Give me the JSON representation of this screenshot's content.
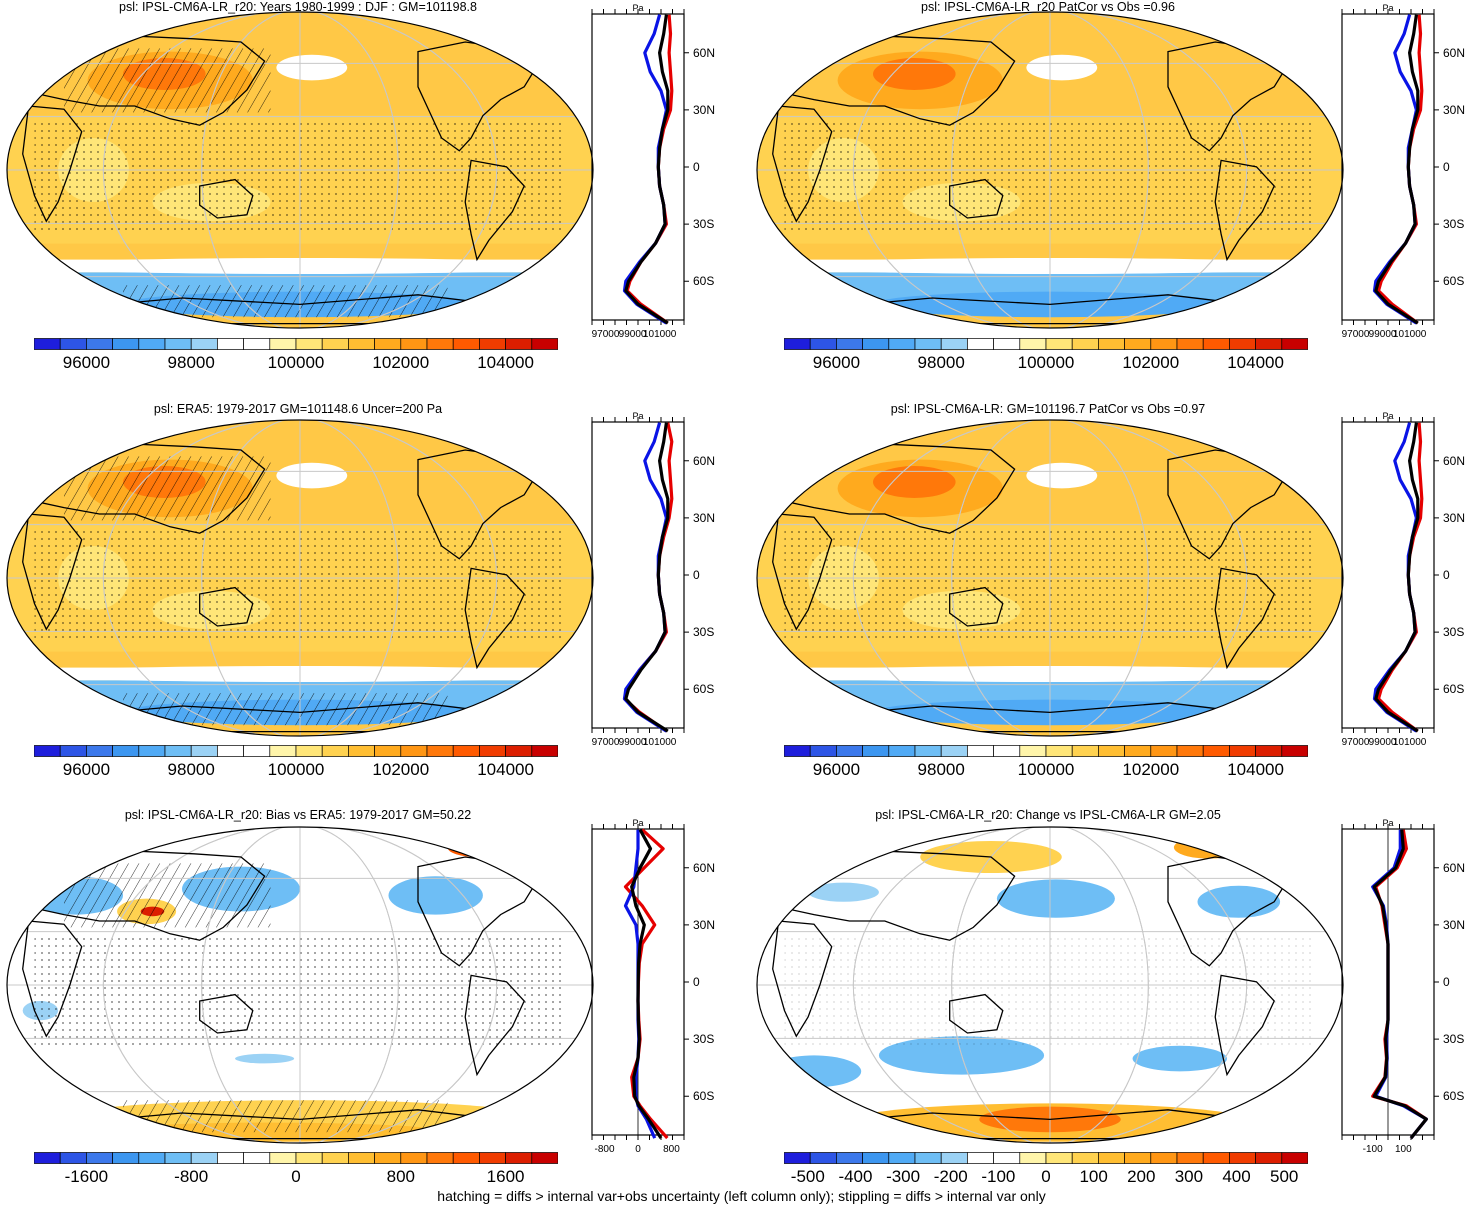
{
  "footer": "hatching = diffs > internal var+obs uncertainty (left column only); stippling = diffs > internal var only",
  "colors": {
    "full_field_palette": [
      "#1e1edc",
      "#2d55e6",
      "#3c78eb",
      "#3c96f0",
      "#50aaf5",
      "#6ebef5",
      "#9bd2f5",
      "#ffffff",
      "#ffffff",
      "#fff5aa",
      "#ffe678",
      "#ffd250",
      "#ffbe32",
      "#ffaa1e",
      "#ff9614",
      "#ff780a",
      "#ff5a00",
      "#f03c00",
      "#dc1e00",
      "#c80000"
    ],
    "diff_palette": [
      "#1e1edc",
      "#2d55e6",
      "#3c78eb",
      "#3c96f0",
      "#50aaf5",
      "#6ebef5",
      "#9bd2f5",
      "#ffffff",
      "#ffffff",
      "#fff5aa",
      "#ffe678",
      "#ffd250",
      "#ffbe32",
      "#ffaa1e",
      "#ff9614",
      "#ff780a",
      "#ff5a00",
      "#f03c00",
      "#dc1e00",
      "#c80000"
    ],
    "model_line": "#e60000",
    "obs_line": "#0a14e6",
    "mean_line": "#000000",
    "map_base_full": "#ffc846",
    "map_base_diff": "#ffffff"
  },
  "panels": [
    {
      "title": "psl: IPSL-CM6A-LR_r20: Years 1980-1999 : DJF : GM=101198.8",
      "colorbar_labels": [
        "96000",
        "98000",
        "100000",
        "102000",
        "104000"
      ],
      "zonal_axis": {
        "unit": "Pa",
        "xticks": [
          "97000",
          "99000",
          "101000"
        ],
        "yticks": [
          "60N",
          "30N",
          "0",
          "30S",
          "60S"
        ]
      }
    },
    {
      "title": "psl: IPSL-CM6A-LR_r20 PatCor vs Obs =0.96",
      "colorbar_labels": [
        "96000",
        "98000",
        "100000",
        "102000",
        "104000"
      ],
      "zonal_axis": {
        "unit": "Pa",
        "xticks": [
          "97000",
          "99000",
          "101000"
        ],
        "yticks": [
          "60N",
          "30N",
          "0",
          "30S",
          "60S"
        ]
      }
    },
    {
      "title": "psl: ERA5: 1979-2017 GM=101148.6 Uncer=200 Pa",
      "colorbar_labels": [
        "96000",
        "98000",
        "100000",
        "102000",
        "104000"
      ],
      "zonal_axis": {
        "unit": "Pa",
        "xticks": [
          "97000",
          "99000",
          "101000"
        ],
        "yticks": [
          "60N",
          "30N",
          "0",
          "30S",
          "60S"
        ]
      }
    },
    {
      "title": "psl: IPSL-CM6A-LR: GM=101196.7 PatCor vs Obs =0.97",
      "colorbar_labels": [
        "96000",
        "98000",
        "100000",
        "102000",
        "104000"
      ],
      "zonal_axis": {
        "unit": "Pa",
        "xticks": [
          "97000",
          "99000",
          "101000"
        ],
        "yticks": [
          "60N",
          "30N",
          "0",
          "30S",
          "60S"
        ]
      }
    },
    {
      "title": "psl: IPSL-CM6A-LR_r20: Bias vs ERA5: 1979-2017 GM=50.22",
      "colorbar_labels": [
        "-1600",
        "-800",
        "0",
        "800",
        "1600"
      ],
      "zonal_axis": {
        "unit": "Pa",
        "xticks": [
          "-800",
          "0",
          "800"
        ],
        "yticks": [
          "60N",
          "30N",
          "0",
          "30S",
          "60S"
        ]
      }
    },
    {
      "title": "psl: IPSL-CM6A-LR_r20: Change vs IPSL-CM6A-LR GM=2.05",
      "colorbar_labels": [
        "-500",
        "-400",
        "-300",
        "-200",
        "-100",
        "0",
        "100",
        "200",
        "300",
        "400",
        "500"
      ],
      "zonal_axis": {
        "unit": "Pa",
        "xticks": [
          "-100",
          "100"
        ],
        "yticks": [
          "60N",
          "30N",
          "0",
          "30S",
          "60S"
        ]
      }
    }
  ],
  "chart_data": [
    {
      "type": "heatmap",
      "title": "psl: IPSL-CM6A-LR_r20: Years 1980-1999 : DJF : GM=101198.8",
      "colorbar": {
        "min": 95000,
        "max": 105000,
        "ticks": [
          96000,
          98000,
          100000,
          102000,
          104000
        ]
      },
      "zonal_profile": {
        "type": "line",
        "xlim": [
          96000,
          102800
        ],
        "lat": [
          -82,
          -72,
          -65,
          -60,
          -50,
          -40,
          -30,
          -20,
          -10,
          0,
          10,
          20,
          30,
          40,
          50,
          60,
          70,
          80
        ],
        "series": [
          {
            "values": [
              101600,
              99600,
              98600,
              98800,
              99600,
              100700,
              101500,
              101300,
              101000,
              100900,
              101000,
              101300,
              101800,
              101900,
              101800,
              101700,
              101800,
              101700
            ]
          },
          {
            "values": [
              101500,
              99300,
              98400,
              98500,
              99500,
              100700,
              101400,
              101300,
              101000,
              100900,
              100900,
              101200,
              101500,
              101100,
              100300,
              99900,
              100600,
              101000
            ]
          },
          {
            "values": [
              101600,
              99400,
              98500,
              98700,
              99600,
              100700,
              101400,
              101300,
              101000,
              100900,
              101000,
              101200,
              101600,
              101600,
              101200,
              101000,
              101300,
              101500
            ]
          }
        ]
      }
    },
    {
      "type": "heatmap",
      "title": "psl: IPSL-CM6A-LR_r20 PatCor vs Obs =0.96",
      "colorbar": {
        "min": 95000,
        "max": 105000,
        "ticks": [
          96000,
          98000,
          100000,
          102000,
          104000
        ]
      },
      "zonal_profile": {
        "type": "line",
        "xlim": [
          96000,
          102800
        ],
        "lat": [
          -82,
          -72,
          -65,
          -60,
          -50,
          -40,
          -30,
          -20,
          -10,
          0,
          10,
          20,
          30,
          40,
          50,
          60,
          70,
          80
        ],
        "series": [
          {
            "values": [
              101600,
              99700,
              98700,
              98900,
              99700,
              100700,
              101500,
              101300,
              101000,
              100900,
              101000,
              101300,
              101800,
              101900,
              101800,
              101700,
              101800,
              101700
            ]
          },
          {
            "values": [
              101500,
              99300,
              98400,
              98500,
              99500,
              100700,
              101400,
              101300,
              101000,
              100900,
              100900,
              101200,
              101500,
              101100,
              100300,
              99900,
              100600,
              101000
            ]
          },
          {
            "values": [
              101600,
              99400,
              98500,
              98700,
              99600,
              100700,
              101400,
              101300,
              101000,
              100900,
              101000,
              101200,
              101600,
              101600,
              101200,
              101000,
              101300,
              101500
            ]
          }
        ]
      }
    },
    {
      "type": "heatmap",
      "title": "psl: ERA5: 1979-2017 GM=101148.6 Uncer=200 Pa",
      "colorbar": {
        "min": 95000,
        "max": 105000,
        "ticks": [
          96000,
          98000,
          100000,
          102000,
          104000
        ]
      },
      "zonal_profile": {
        "type": "line",
        "xlim": [
          96000,
          102800
        ],
        "lat": [
          -82,
          -72,
          -65,
          -60,
          -50,
          -40,
          -30,
          -20,
          -10,
          0,
          10,
          20,
          30,
          40,
          50,
          60,
          70,
          80
        ],
        "series": [
          {
            "values": [
              101500,
              99500,
              98400,
              98600,
              99500,
              100700,
              101500,
              101300,
              101000,
              100900,
              101000,
              101300,
              101700,
              101900,
              101800,
              101700,
              101900,
              101600
            ]
          },
          {
            "values": [
              101500,
              99300,
              98400,
              98500,
              99500,
              100700,
              101400,
              101300,
              101000,
              100900,
              100900,
              101200,
              101500,
              101100,
              100300,
              99900,
              100600,
              101000
            ]
          },
          {
            "values": [
              101600,
              99400,
              98500,
              98700,
              99600,
              100700,
              101400,
              101300,
              101000,
              100900,
              101000,
              101200,
              101600,
              101600,
              101200,
              101000,
              101300,
              101500
            ]
          }
        ]
      }
    },
    {
      "type": "heatmap",
      "title": "psl: IPSL-CM6A-LR: GM=101196.7 PatCor vs Obs =0.97",
      "colorbar": {
        "min": 95000,
        "max": 105000,
        "ticks": [
          96000,
          98000,
          100000,
          102000,
          104000
        ]
      },
      "zonal_profile": {
        "type": "line",
        "xlim": [
          96000,
          102800
        ],
        "lat": [
          -82,
          -72,
          -65,
          -60,
          -50,
          -40,
          -30,
          -20,
          -10,
          0,
          10,
          20,
          30,
          40,
          50,
          60,
          70,
          80
        ],
        "series": [
          {
            "values": [
              101600,
              99700,
              98700,
              98900,
              99700,
              100700,
              101500,
              101300,
              101000,
              100900,
              101000,
              101300,
              101800,
              101900,
              101800,
              101700,
              101800,
              101700
            ]
          },
          {
            "values": [
              101500,
              99300,
              98400,
              98500,
              99500,
              100700,
              101400,
              101300,
              101000,
              100900,
              100900,
              101200,
              101500,
              101100,
              100300,
              99900,
              100600,
              101000
            ]
          },
          {
            "values": [
              101600,
              99400,
              98500,
              98700,
              99600,
              100700,
              101400,
              101300,
              101000,
              100900,
              101000,
              101200,
              101600,
              101600,
              101200,
              101000,
              101300,
              101500
            ]
          }
        ]
      }
    },
    {
      "type": "heatmap",
      "title": "psl: IPSL-CM6A-LR_r20: Bias vs ERA5: 1979-2017 GM=50.22",
      "colorbar": {
        "min": -2000,
        "max": 2000,
        "ticks": [
          -1600,
          -800,
          0,
          800,
          1600
        ]
      },
      "zonal_profile": {
        "type": "line",
        "xlim": [
          -1100,
          1100
        ],
        "lat": [
          -82,
          -72,
          -65,
          -60,
          -50,
          -40,
          -30,
          -20,
          -10,
          0,
          10,
          20,
          30,
          40,
          50,
          60,
          70,
          80
        ],
        "series": [
          {
            "values": [
              700,
              300,
              50,
              -100,
              -150,
              0,
              50,
              20,
              0,
              10,
              30,
              100,
              400,
              100,
              -300,
              150,
              600,
              100
            ]
          },
          {
            "values": [
              400,
              200,
              0,
              -50,
              -50,
              0,
              20,
              0,
              0,
              0,
              0,
              0,
              -50,
              -300,
              -100,
              -50,
              0,
              0
            ]
          },
          {
            "values": [
              550,
              250,
              20,
              -80,
              -100,
              0,
              30,
              10,
              0,
              5,
              15,
              50,
              150,
              -50,
              -150,
              50,
              300,
              50
            ]
          }
        ]
      }
    },
    {
      "type": "heatmap",
      "title": "psl: IPSL-CM6A-LR_r20: Change vs IPSL-CM6A-LR GM=2.05",
      "colorbar": {
        "min": -550,
        "max": 550,
        "ticks": [
          -500,
          -400,
          -300,
          -200,
          -100,
          0,
          100,
          200,
          300,
          400,
          500
        ]
      },
      "zonal_profile": {
        "type": "line",
        "xlim": [
          -300,
          300
        ],
        "lat": [
          -82,
          -72,
          -65,
          -60,
          -50,
          -40,
          -30,
          -20,
          -10,
          0,
          10,
          20,
          30,
          40,
          50,
          60,
          70,
          80
        ],
        "series": [
          {
            "values": [
              150,
              250,
              120,
              -100,
              -20,
              -10,
              -20,
              0,
              0,
              0,
              0,
              0,
              -20,
              -40,
              -80,
              60,
              120,
              100
            ]
          },
          {
            "values": [
              150,
              250,
              100,
              -80,
              -15,
              -5,
              -10,
              0,
              0,
              0,
              0,
              0,
              -10,
              -30,
              -100,
              40,
              80,
              80
            ]
          },
          {
            "values": [
              150,
              250,
              110,
              -90,
              -18,
              -8,
              -15,
              0,
              0,
              0,
              0,
              0,
              -15,
              -35,
              -90,
              50,
              100,
              90
            ]
          }
        ]
      }
    }
  ]
}
